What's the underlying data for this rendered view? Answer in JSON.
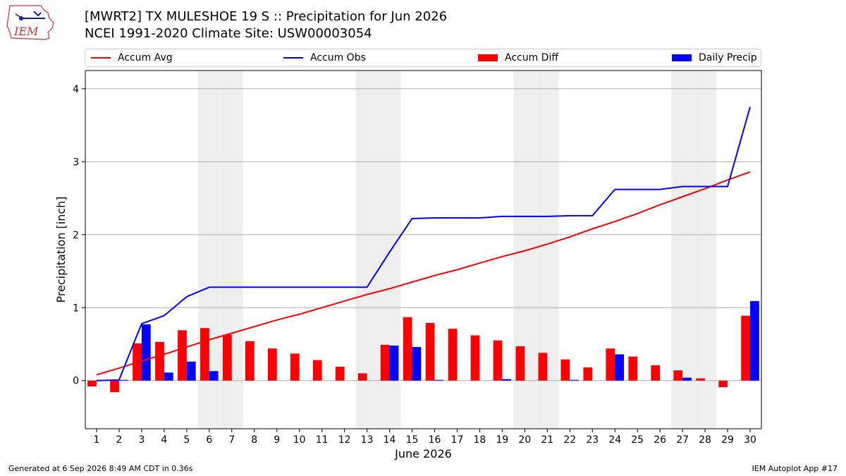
{
  "header": {
    "logo_text": "IEM",
    "title_line1": "[MWRT2] TX MULESHOE 19 S :: Precipitation for Jun 2026",
    "title_line2": "NCEI 1991-2020 Climate Site: USW00003054"
  },
  "legend": {
    "accum_avg": "Accum Avg",
    "accum_obs": "Accum Obs",
    "accum_diff": "Accum Diff",
    "daily_precip": "Daily Precip"
  },
  "colors": {
    "accum_avg": "#ff0000",
    "accum_obs": "#0000ff",
    "accum_diff": "#ff0000",
    "daily_precip": "#0000ff",
    "weekend_band": "#eeeeee",
    "grid": "#b0b0b0"
  },
  "chart_data": {
    "type": "bar",
    "xlabel": "June 2026",
    "ylabel": "Precipitation [inch]",
    "xlim": [
      0.5,
      30.5
    ],
    "ylim": [
      -0.66,
      4.25
    ],
    "yticks": [
      0,
      1,
      2,
      3,
      4
    ],
    "grid": "horizontal",
    "legend_position": "top",
    "days": [
      1,
      2,
      3,
      4,
      5,
      6,
      7,
      8,
      9,
      10,
      11,
      12,
      13,
      14,
      15,
      16,
      17,
      18,
      19,
      20,
      21,
      22,
      23,
      24,
      25,
      26,
      27,
      28,
      29,
      30
    ],
    "shaded_weekend_days": [
      6,
      7,
      13,
      14,
      20,
      21,
      27,
      28
    ],
    "series": [
      {
        "name": "Accum Avg",
        "kind": "line",
        "values": [
          0.08,
          0.17,
          0.27,
          0.36,
          0.46,
          0.56,
          0.65,
          0.74,
          0.83,
          0.91,
          1.0,
          1.09,
          1.18,
          1.26,
          1.35,
          1.44,
          1.52,
          1.61,
          1.7,
          1.78,
          1.87,
          1.97,
          2.08,
          2.18,
          2.29,
          2.41,
          2.52,
          2.63,
          2.75,
          2.86
        ]
      },
      {
        "name": "Accum Obs",
        "kind": "line",
        "values": [
          0.0,
          0.01,
          0.78,
          0.89,
          1.15,
          1.28,
          1.28,
          1.28,
          1.28,
          1.28,
          1.28,
          1.28,
          1.28,
          1.76,
          2.22,
          2.23,
          2.23,
          2.23,
          2.25,
          2.25,
          2.25,
          2.26,
          2.26,
          2.62,
          2.62,
          2.62,
          2.66,
          2.66,
          2.66,
          3.75
        ]
      },
      {
        "name": "Accum Diff",
        "kind": "bar",
        "values": [
          -0.08,
          -0.16,
          0.51,
          0.53,
          0.69,
          0.72,
          0.63,
          0.54,
          0.44,
          0.37,
          0.28,
          0.19,
          0.1,
          0.49,
          0.87,
          0.79,
          0.71,
          0.62,
          0.55,
          0.47,
          0.38,
          0.29,
          0.18,
          0.44,
          0.33,
          0.21,
          0.14,
          0.03,
          -0.09,
          0.89
        ]
      },
      {
        "name": "Daily Precip",
        "kind": "bar",
        "values": [
          0.0,
          0.01,
          0.77,
          0.11,
          0.26,
          0.13,
          0.0,
          0.0,
          0.0,
          0.0,
          0.0,
          0.0,
          0.0,
          0.48,
          0.46,
          0.01,
          0.0,
          0.0,
          0.02,
          0.0,
          0.0,
          0.01,
          0.0,
          0.36,
          0.0,
          0.0,
          0.04,
          0.0,
          0.0,
          1.09
        ]
      }
    ]
  },
  "footer": {
    "left": "Generated at 6 Sep 2026 8:49 AM CDT in 0.36s",
    "right": "IEM Autoplot App #17"
  }
}
